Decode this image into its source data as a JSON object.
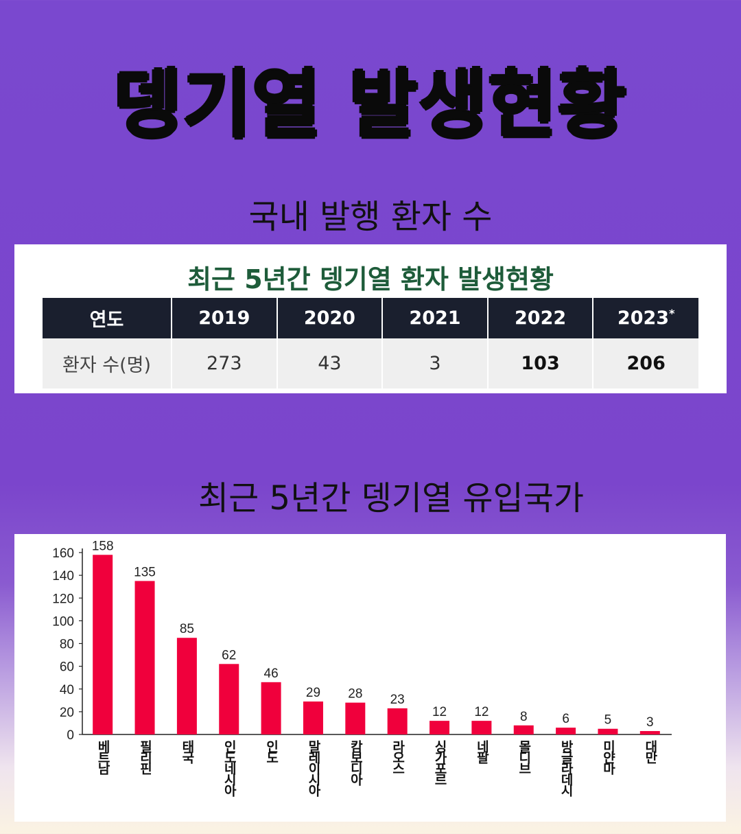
{
  "page": {
    "title": "뎅기열 발생현황",
    "section1_title": "국내 발행 환자 수",
    "section2_title": "최근 5년간 뎅기열 유입국가"
  },
  "table": {
    "title": "최근 5년간 뎅기열 환자 발생현황",
    "header_label": "연도",
    "row_label": "환자 수(명)",
    "years": [
      "2019",
      "2020",
      "2021",
      "2022",
      "2023"
    ],
    "year_note": "*",
    "values": [
      "273",
      "43",
      "3",
      "103",
      "206"
    ]
  },
  "colors": {
    "bar": "#f0003c",
    "table_header": "#1a1f2e",
    "table_title": "#1e5c3a",
    "background": "#7a48cf"
  },
  "chart_data": {
    "type": "bar",
    "categories": [
      "베트남",
      "필리핀",
      "태국",
      "인도네시아",
      "인도",
      "말레이시아",
      "캄보디아",
      "라오스",
      "싱가포르",
      "네팔",
      "몰디브",
      "방글라데시",
      "미얀마",
      "대만"
    ],
    "values": [
      158,
      135,
      85,
      62,
      46,
      29,
      28,
      23,
      12,
      12,
      8,
      6,
      5,
      3
    ],
    "yticks": [
      "0",
      "20",
      "40",
      "60",
      "80",
      "100",
      "120",
      "140",
      "160"
    ],
    "ylim": [
      0,
      160
    ],
    "xlabel": "",
    "ylabel": "",
    "grid": false
  }
}
